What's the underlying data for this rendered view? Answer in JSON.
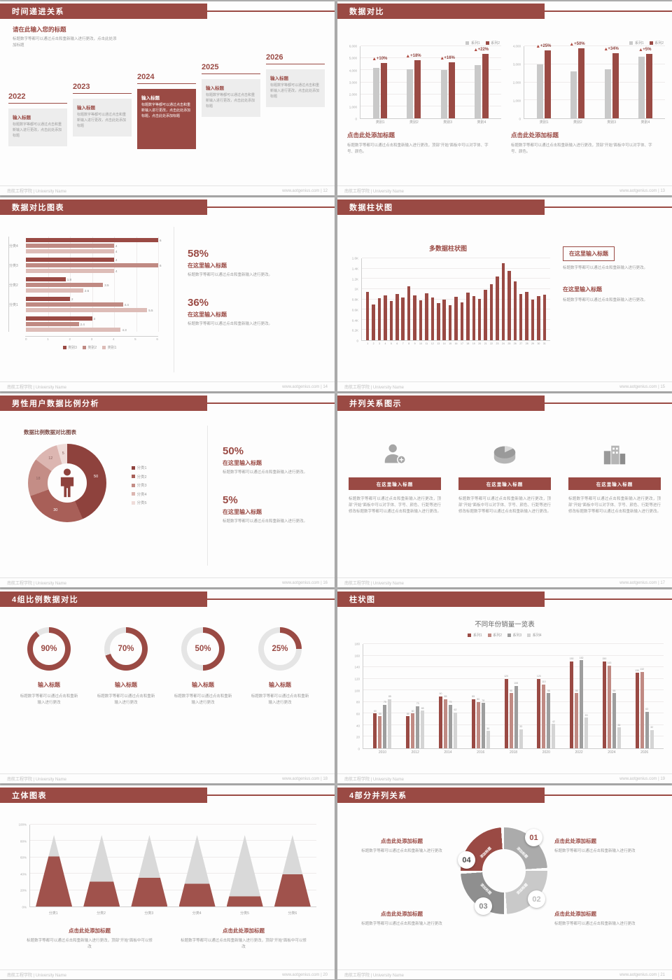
{
  "footer": {
    "left": "南航工程学院 | University Name"
  },
  "colors": {
    "accent": "#9a4a44",
    "accent_mid": "#c08a83",
    "accent_light": "#ddbcb7",
    "bar_gray": "#c9c9c9"
  },
  "slides": {
    "s12": {
      "title": "时间递进关系",
      "footer_right": "www.aotgenius.com | 12",
      "intro_title": "请在此输入您的标题",
      "intro_text": "标题数字等都可以通过点击和重新输入进行更改，点击此处添加标题",
      "items": [
        {
          "year": "2022",
          "box_title": "输入标题",
          "box_text": "标题数字等都可以通过点击和重新输入进行更改，点击此处添加标题",
          "highlight": false
        },
        {
          "year": "2023",
          "box_title": "输入标题",
          "box_text": "标题数字等都可以通过点击和重新输入进行更改，点击此处添加标题",
          "highlight": false
        },
        {
          "year": "2024",
          "box_title": "输入标题",
          "box_text": "标题数字等都可以通过点击和重新输入进行更改，点击此处添加标题，点击此处添加标题",
          "highlight": true
        },
        {
          "year": "2025",
          "box_title": "输入标题",
          "box_text": "标题数字等都可以通过点击和重新输入进行更改，点击此处添加标题",
          "highlight": false
        },
        {
          "year": "2026",
          "box_title": "输入标题",
          "box_text": "标题数字等都可以通过点击和重新输入进行更改，点击此处添加标题",
          "highlight": false
        }
      ]
    },
    "s13": {
      "title": "数据对比",
      "footer_right": "www.aotgenius.com | 13",
      "panels": [
        {
          "legend": [
            "系列1",
            "系列2"
          ],
          "ymax": 6000,
          "yticks": [
            "0",
            "1,000",
            "2,000",
            "3,000",
            "4,000",
            "5,000",
            "6,000"
          ],
          "categories": [
            "类别1",
            "类别2",
            "类别3",
            "类别4"
          ],
          "series1": [
            4200,
            4100,
            4000,
            4400
          ],
          "series2": [
            4620,
            4840,
            4640,
            5370
          ],
          "pcts": [
            "+10%",
            "+18%",
            "+16%",
            "+22%"
          ],
          "heading": "点击此处添加标题",
          "body": "标题数字等都可以通过点击和重新输入进行更改，顶部“开始”面板中可以对字体、字号、颜色。"
        },
        {
          "legend": [
            "系列1",
            "系列2"
          ],
          "ymax": 4000,
          "yticks": [
            "0",
            "1,000",
            "2,000",
            "3,000",
            "4,000"
          ],
          "categories": [
            "类别1",
            "类别2",
            "类别3",
            "类别4"
          ],
          "series1": [
            3000,
            2600,
            2700,
            3400
          ],
          "series2": [
            3750,
            3900,
            3620,
            3570
          ],
          "pcts": [
            "+25%",
            "+50%",
            "+34%",
            "+5%"
          ],
          "heading": "点击此处添加标题",
          "body": "标题数字等都可以通过点击和重新输入进行更改，顶部“开始”面板中可以对字体、字号、颜色。"
        }
      ]
    },
    "s14": {
      "title": "数据对比图表",
      "footer_right": "www.aotgenius.com | 14",
      "chart": {
        "xmax": 6,
        "xticks": [
          "0",
          "1",
          "2",
          "3",
          "4",
          "5",
          "6"
        ],
        "colors": [
          "#9a4a44",
          "#c08a83",
          "#ddbcb7"
        ],
        "legend": [
          {
            "label": "类别3",
            "color": "#9a4a44"
          },
          {
            "label": "类别2",
            "color": "#c08a83"
          },
          {
            "label": "类别1",
            "color": "#ddbcb7"
          }
        ],
        "groups": [
          {
            "label": "分类4",
            "values": [
              6,
              4,
              4
            ]
          },
          {
            "label": "分类3",
            "values": [
              4,
              6,
              4
            ]
          },
          {
            "label": "分类2",
            "values": [
              1.8,
              3.5,
              2.6
            ]
          },
          {
            "label": "分类1",
            "values": [
              2,
              4.4,
              5.5
            ]
          },
          {
            "label": "",
            "values": [
              3,
              2.4,
              4.3
            ]
          }
        ]
      },
      "stats": [
        {
          "pct": "58%",
          "heading": "在这里输入标题",
          "body": "标题数字等都可以通过点击和重新输入进行更改。"
        },
        {
          "pct": "36%",
          "heading": "在这里输入标题",
          "body": "标题数字等都可以通过点击和重新输入进行更改。"
        }
      ]
    },
    "s15": {
      "title": "数据柱状图",
      "footer_right": "www.aotgenius.com | 15",
      "chart_title": "多数据柱状图",
      "ymax": 1600,
      "yticks": [
        "0",
        "0.2K",
        "0.4K",
        "0.6K",
        "0.8K",
        "1K",
        "1.2K",
        "1.4K",
        "1.6K"
      ],
      "xlabels": [
        "1",
        "2",
        "3",
        "4",
        "5",
        "6",
        "7",
        "8",
        "9",
        "10",
        "11",
        "12",
        "13",
        "14",
        "15",
        "16",
        "17",
        "18",
        "19",
        "20",
        "21",
        "22",
        "23",
        "24",
        "25",
        "26",
        "27",
        "28",
        "29",
        "30",
        "31"
      ],
      "values": [
        950,
        700,
        820,
        880,
        760,
        900,
        830,
        1050,
        870,
        780,
        920,
        840,
        730,
        790,
        680,
        850,
        740,
        930,
        860,
        810,
        980,
        1100,
        1250,
        1500,
        1350,
        1150,
        900,
        950,
        800,
        860,
        890
      ],
      "boxes": [
        {
          "heading": "在这里输入标题",
          "body": "标题数字等都可以通过点击和重新输入进行更改。",
          "boxed": true
        },
        {
          "heading": "在这里输入标题",
          "body": "标题数字等都可以通过点击和重新输入进行更改。",
          "boxed": false
        }
      ]
    },
    "s16": {
      "title": "男性用户数据比例分析",
      "footer_right": "www.aotgenius.com | 16",
      "chart_title": "数据比例数据对比图表",
      "chart": {
        "values": [
          50,
          30,
          18,
          12,
          5
        ],
        "labels": [
          "50",
          "30",
          "18",
          "12",
          "5"
        ],
        "colors": [
          "#8e423d",
          "#a85f58",
          "#c48d86",
          "#dcb6b1",
          "#efdcd9"
        ],
        "legend": [
          "分类1",
          "分类2",
          "分类3",
          "分类4",
          "分类5"
        ]
      },
      "stats": [
        {
          "pct": "50%",
          "heading": "在这里输入标题",
          "body": "标题数字等都可以通过点击和重新输入进行更改。"
        },
        {
          "pct": "5%",
          "heading": "在这里输入标题",
          "body": "标题数字等都可以通过点击和重新输入进行更改。"
        }
      ]
    },
    "s17": {
      "title": "并列关系图示",
      "footer_right": "www.aotgenius.com | 17",
      "columns": [
        {
          "icon": "person-plus-icon",
          "heading": "在这里输入标题",
          "body": "标题数字等都可以通过点击和重新输入进行更改，顶部“开始”面板中可以对字体、字号、颜色、行距等进行修改标题数字等都可以通过点击和重新输入进行更改。"
        },
        {
          "icon": "pie-chart-icon",
          "heading": "在这里输入标题",
          "body": "标题数字等都可以通过点击和重新输入进行更改，顶部“开始”面板中可以对字体、字号、颜色、行距等进行修改标题数字等都可以通过点击和重新输入进行更改。"
        },
        {
          "icon": "building-icon",
          "heading": "在这里输入标题",
          "body": "标题数字等都可以通过点击和重新输入进行更改，顶部“开始”面板中可以对字体、字号、颜色、行距等进行修改标题数字等都可以通过点击和重新输入进行更改。"
        }
      ]
    },
    "s18": {
      "title": "4组比例数据对比",
      "footer_right": "www.aotgenius.com | 18",
      "items": [
        {
          "pct": "90%",
          "value": 90,
          "heading": "输入标题",
          "body": "标题数字等都可以通过点击和重新输入进行更改"
        },
        {
          "pct": "70%",
          "value": 70,
          "heading": "输入标题",
          "body": "标题数字等都可以通过点击和重新输入进行更改"
        },
        {
          "pct": "50%",
          "value": 50,
          "heading": "输入标题",
          "body": "标题数字等都可以通过点击和重新输入进行更改"
        },
        {
          "pct": "25%",
          "value": 25,
          "heading": "输入标题",
          "body": "标题数字等都可以通过点击和重新输入进行更改"
        }
      ]
    },
    "s19": {
      "title": "柱状图",
      "footer_right": "www.aotgenius.com | 19",
      "chart": {
        "title": "不同年份销量一览表",
        "legend": [
          "系列1",
          "系列2",
          "系列3",
          "系列4"
        ],
        "colors": [
          "#9a4a44",
          "#c08a83",
          "#9e9e9e",
          "#d4d4d4"
        ],
        "ymax": 180,
        "yticks": [
          "0",
          "20",
          "40",
          "60",
          "80",
          "100",
          "120",
          "140",
          "160",
          "180"
        ],
        "categories": [
          "2010",
          "2012",
          "2014",
          "2016",
          "2018",
          "2020",
          "2022",
          "2024",
          "2026"
        ],
        "series": [
          {
            "name": "系列1",
            "values": [
              60,
              55,
              90,
              85,
              120,
              120,
              150,
              150,
              130
            ]
          },
          {
            "name": "系列2",
            "values": [
              55,
              60,
              85,
              80,
              95,
              110,
              95,
              143,
              132
            ]
          },
          {
            "name": "系列3",
            "values": [
              75,
              73,
              75,
              78,
              108,
              95,
              152,
              95,
              63
            ]
          },
          {
            "name": "系列4",
            "values": [
              85,
              65,
              62,
              30,
              33,
              42,
              53,
              36,
              32
            ]
          }
        ]
      }
    },
    "s20": {
      "title": "立体图表",
      "footer_right": "www.aotgenius.com | 20",
      "chart": {
        "yticks": [
          "0%",
          "20%",
          "40%",
          "60%",
          "80%",
          "100%"
        ],
        "categories": [
          "分类1",
          "分类2",
          "分类3",
          "分类4",
          "分类5",
          "分类6"
        ],
        "fills": [
          70,
          35,
          40,
          32,
          14,
          45
        ]
      },
      "blocks": [
        {
          "heading": "点击此处添加标题",
          "body": "标题数字等都可以通过点击和重新输入进行更改，顶部“开始”面板中可以修改"
        },
        {
          "heading": "点击此处添加标题",
          "body": "标题数字等都可以通过点击和重新输入进行更改，顶部“开始”面板中可以修改"
        }
      ]
    },
    "s21": {
      "title": "4部分并列关系",
      "footer_right": "www.aotgenius.com | 21",
      "segments": [
        {
          "num": "01",
          "label": "添加标题"
        },
        {
          "num": "02",
          "label": "添加标题"
        },
        {
          "num": "03",
          "label": "添加标题"
        },
        {
          "num": "04",
          "label": "添加标题"
        }
      ],
      "blocks": [
        {
          "heading": "点击此处添加标题",
          "body": "标题数字等都可以通过点击和重新输入进行更改"
        },
        {
          "heading": "点击此处添加标题",
          "body": "标题数字等都可以通过点击和重新输入进行更改"
        },
        {
          "heading": "点击此处添加标题",
          "body": "标题数字等都可以通过点击和重新输入进行更改"
        },
        {
          "heading": "点击此处添加标题",
          "body": "标题数字等都可以通过点击和重新输入进行更改"
        }
      ]
    }
  }
}
